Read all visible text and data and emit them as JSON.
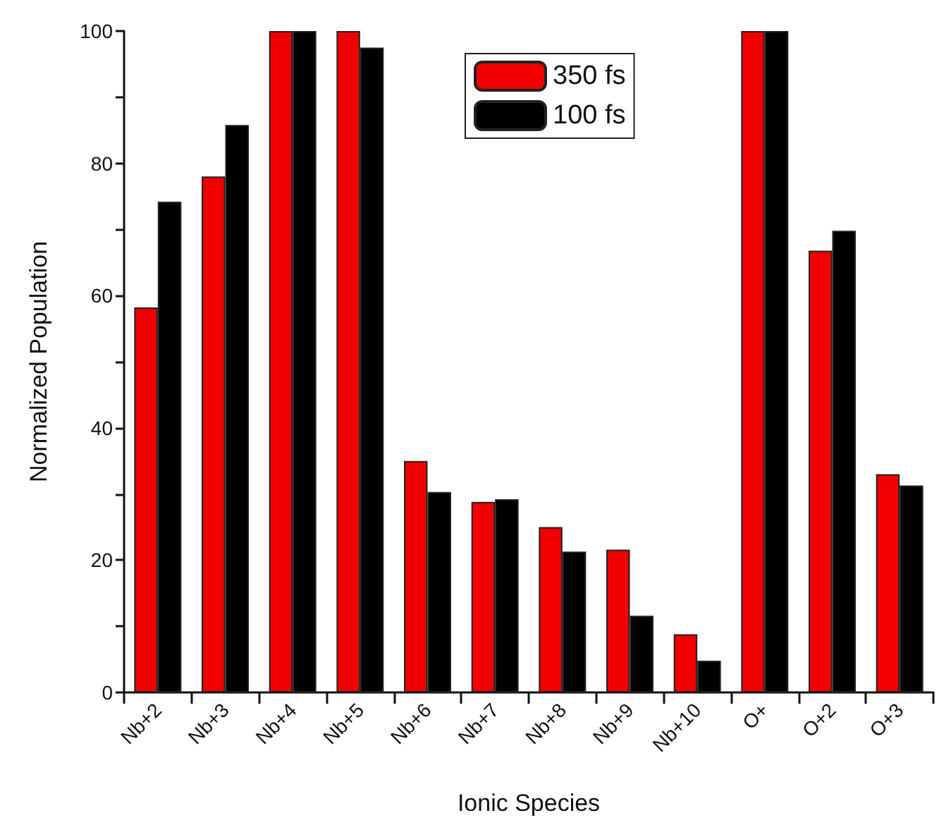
{
  "chart_data": {
    "type": "bar",
    "xlabel": "Ionic Species",
    "ylabel": "Normalized Population",
    "categories": [
      "Nb+2",
      "Nb+3",
      "Nb+4",
      "Nb+5",
      "Nb+6",
      "Nb+7",
      "Nb+8",
      "Nb+9",
      "Nb+10",
      "O+",
      "O+2",
      "O+3"
    ],
    "series": [
      {
        "name": "350 fs",
        "color": "#f00000",
        "values": [
          58.2,
          78,
          100,
          100,
          35,
          28.8,
          25,
          21.6,
          8.8,
          100,
          66.8,
          33
        ]
      },
      {
        "name": "100 fs",
        "color": "#000000",
        "values": [
          74.2,
          85.8,
          100,
          97.5,
          30.3,
          29.2,
          21.3,
          11.6,
          4.8,
          100,
          69.8,
          31.3
        ]
      }
    ],
    "ylim": [
      0,
      100
    ],
    "yticks": [
      0,
      {
        "value": 10,
        "label": null
      },
      20,
      {
        "value": 30,
        "label": null
      },
      40,
      {
        "value": 50,
        "label": null
      },
      60,
      {
        "value": 70,
        "label": null
      },
      80,
      {
        "value": 90,
        "label": null
      },
      100
    ],
    "grid": false,
    "legend": "top"
  }
}
